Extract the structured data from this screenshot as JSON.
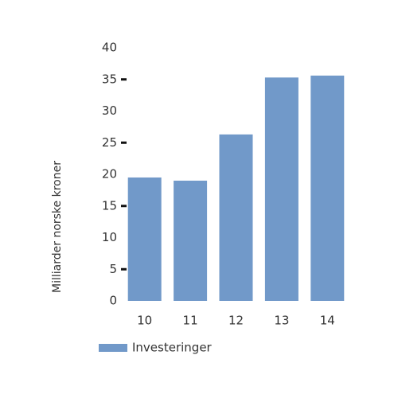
{
  "chart_data": {
    "type": "bar",
    "y_label": "Milliarder norske kroner",
    "categories": [
      "10",
      "11",
      "12",
      "13",
      "14"
    ],
    "series": [
      {
        "name": "Investeringer",
        "color": "#7199c9",
        "values": [
          19.5,
          19.0,
          26.3,
          35.3,
          35.6
        ]
      }
    ],
    "ylim": [
      0,
      40
    ],
    "yticks": [
      0,
      5,
      10,
      15,
      20,
      25,
      30,
      35,
      40
    ],
    "ytick_marks": [
      5,
      15,
      25,
      35
    ],
    "grid": false,
    "legend": "bottom"
  }
}
